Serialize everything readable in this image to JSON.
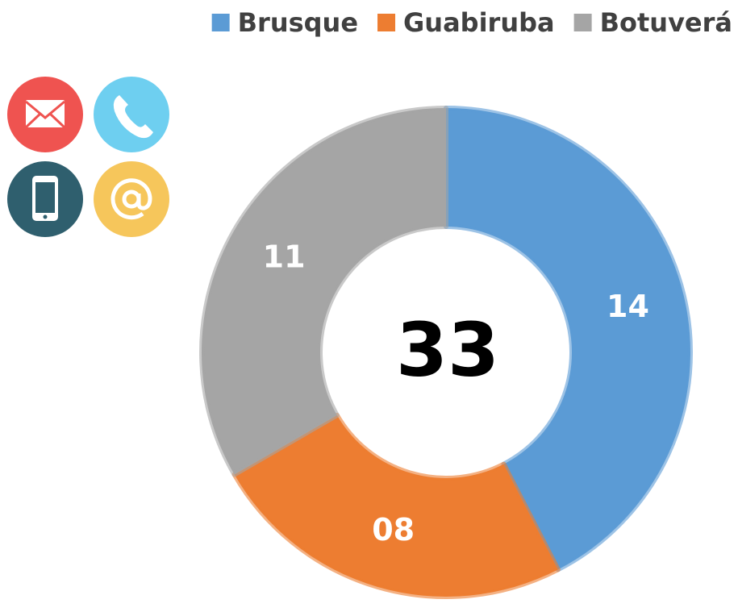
{
  "chart_data": {
    "type": "donut",
    "categories": [
      "Brusque",
      "Guabiruba",
      "Botuverá"
    ],
    "values": [
      14,
      8,
      11
    ],
    "value_labels": [
      "14",
      "08",
      "11"
    ],
    "colors": [
      "#5b9bd5",
      "#ed7d31",
      "#a5a5a5"
    ],
    "total": 33
  }
}
